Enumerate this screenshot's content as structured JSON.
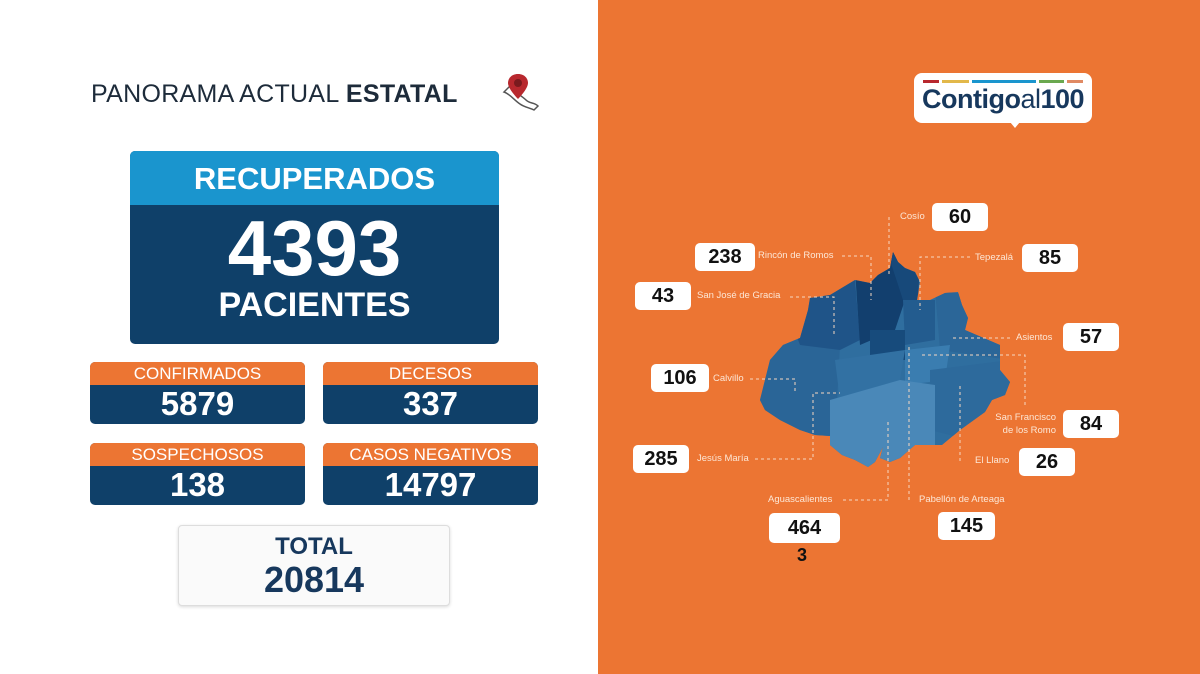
{
  "header": {
    "title_light": "PANORAMA ACTUAL",
    "title_bold": "ESTATAL",
    "icon": "mexico-map-pin-icon"
  },
  "recovered": {
    "label": "RECUPERADOS",
    "value": "4393",
    "unit": "PACIENTES"
  },
  "stats": [
    {
      "label": "CONFIRMADOS",
      "value": "5879"
    },
    {
      "label": "DECESOS",
      "value": "337"
    },
    {
      "label": "SOSPECHOSOS",
      "value": "138"
    },
    {
      "label": "CASOS NEGATIVOS",
      "value": "14797"
    }
  ],
  "total": {
    "label": "TOTAL",
    "value": "20814"
  },
  "logo": {
    "text_a": "Contigo",
    "text_b": "al",
    "text_c": "100"
  },
  "municipalities": [
    {
      "name": "Cosío",
      "value": "60"
    },
    {
      "name": "Rincón de Romos",
      "value": "238"
    },
    {
      "name": "Tepezalá",
      "value": "85"
    },
    {
      "name": "San José de Gracia",
      "value": "43"
    },
    {
      "name": "Asientos",
      "value": "57"
    },
    {
      "name": "Calvillo",
      "value": "106"
    },
    {
      "name": "San Francisco de los Romo",
      "value": "84"
    },
    {
      "name": "El Llano",
      "value": "26"
    },
    {
      "name": "Jesús María",
      "value": "285"
    },
    {
      "name": "Aguascalientes",
      "value": "464",
      "value_overflow": "3"
    },
    {
      "name": "Pabellón de Arteaga",
      "value": "145"
    }
  ],
  "colors": {
    "orange": "#EC7533",
    "navy": "#0F4069",
    "blue": "#1A95CE"
  }
}
